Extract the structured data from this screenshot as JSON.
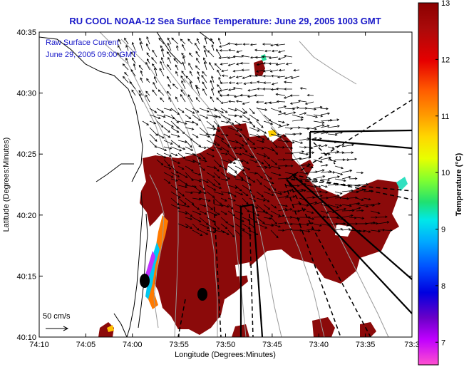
{
  "title": "RU COOL  NOAA-12  Sea Surface Temperature:  June 29, 2005 1003 GMT",
  "annotation": {
    "line1": "Raw Surface Current",
    "line2": "June 29, 2005 09:00 GMT"
  },
  "x_axis": {
    "label": "Longitude (Degrees:Minutes)",
    "ticks": [
      "74:10",
      "74:05",
      "74:00",
      "73:55",
      "73:50",
      "73:45",
      "73:40",
      "73:35",
      "73:3"
    ]
  },
  "y_axis": {
    "label": "Latitude (Degrees:Minutes)",
    "ticks": [
      "40:35",
      "40:30",
      "40:25",
      "40:20",
      "40:15",
      "40:10"
    ]
  },
  "scale": {
    "label": "50 cm/s"
  },
  "colorbar": {
    "label": "Temperature (°C)",
    "ticks": [
      "13",
      "12",
      "11",
      "10",
      "9",
      "8",
      "7"
    ],
    "min": 6.6,
    "max": 13
  },
  "colors": {
    "title": "#1818c8",
    "sst_warm": "#8b0a0a",
    "land": "#ffffff"
  }
}
